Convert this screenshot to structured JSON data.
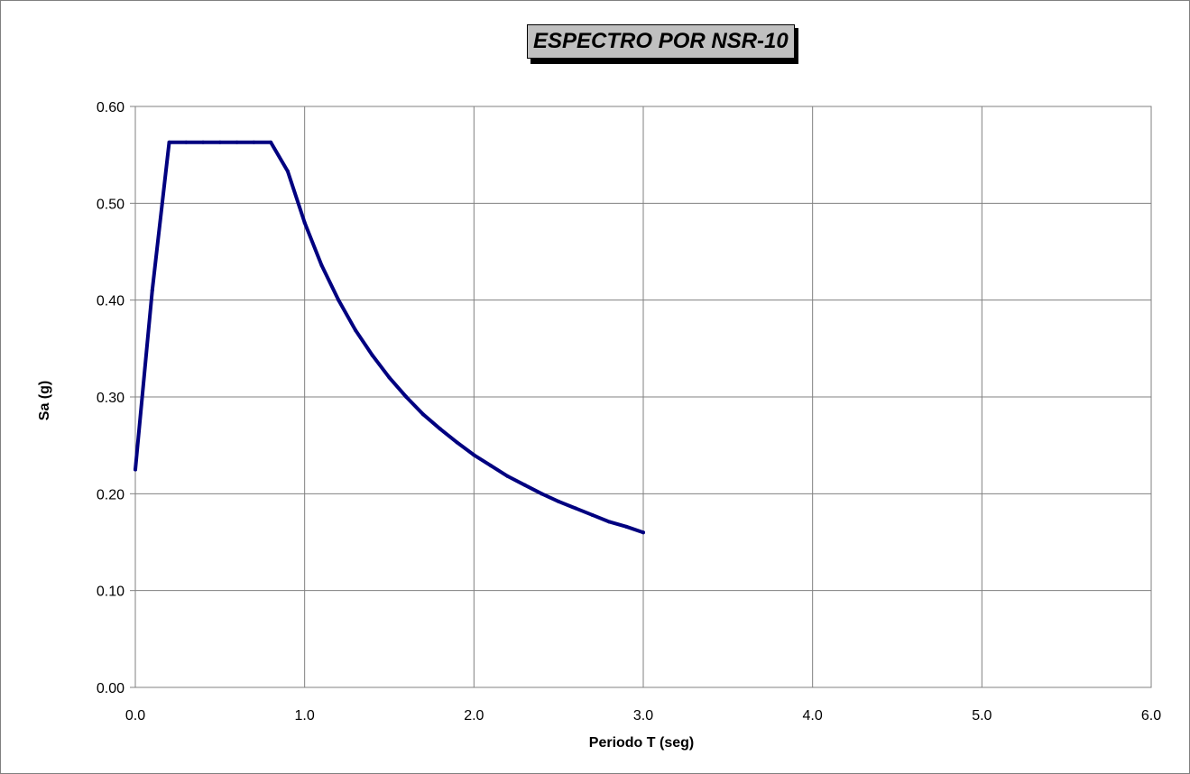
{
  "chart_data": {
    "type": "line",
    "title": "ESPECTRO POR NSR-10",
    "xlabel": "Periodo T (seg)",
    "ylabel": "Sa (g)",
    "xlim": [
      0,
      6
    ],
    "ylim": [
      0,
      0.6
    ],
    "x_ticks": [
      "0.0",
      "1.0",
      "2.0",
      "3.0",
      "4.0",
      "5.0",
      "6.0"
    ],
    "y_ticks": [
      "0.00",
      "0.10",
      "0.20",
      "0.30",
      "0.40",
      "0.50",
      "0.60"
    ],
    "grid": true,
    "legend": "none",
    "series": [
      {
        "color": "#000080",
        "x": [
          0.0,
          0.1,
          0.2,
          0.3,
          0.4,
          0.5,
          0.6,
          0.7,
          0.8,
          0.9,
          1.0,
          1.1,
          1.2,
          1.3,
          1.4,
          1.5,
          1.6,
          1.7,
          1.8,
          1.9,
          2.0,
          2.1,
          2.2,
          2.3,
          2.4,
          2.5,
          2.6,
          2.7,
          2.8,
          2.9,
          3.0
        ],
        "values": [
          0.225,
          0.41,
          0.563,
          0.563,
          0.563,
          0.563,
          0.563,
          0.563,
          0.563,
          0.533,
          0.48,
          0.436,
          0.4,
          0.369,
          0.343,
          0.32,
          0.3,
          0.282,
          0.267,
          0.253,
          0.24,
          0.229,
          0.218,
          0.209,
          0.2,
          0.192,
          0.185,
          0.178,
          0.171,
          0.166,
          0.16
        ]
      }
    ]
  }
}
